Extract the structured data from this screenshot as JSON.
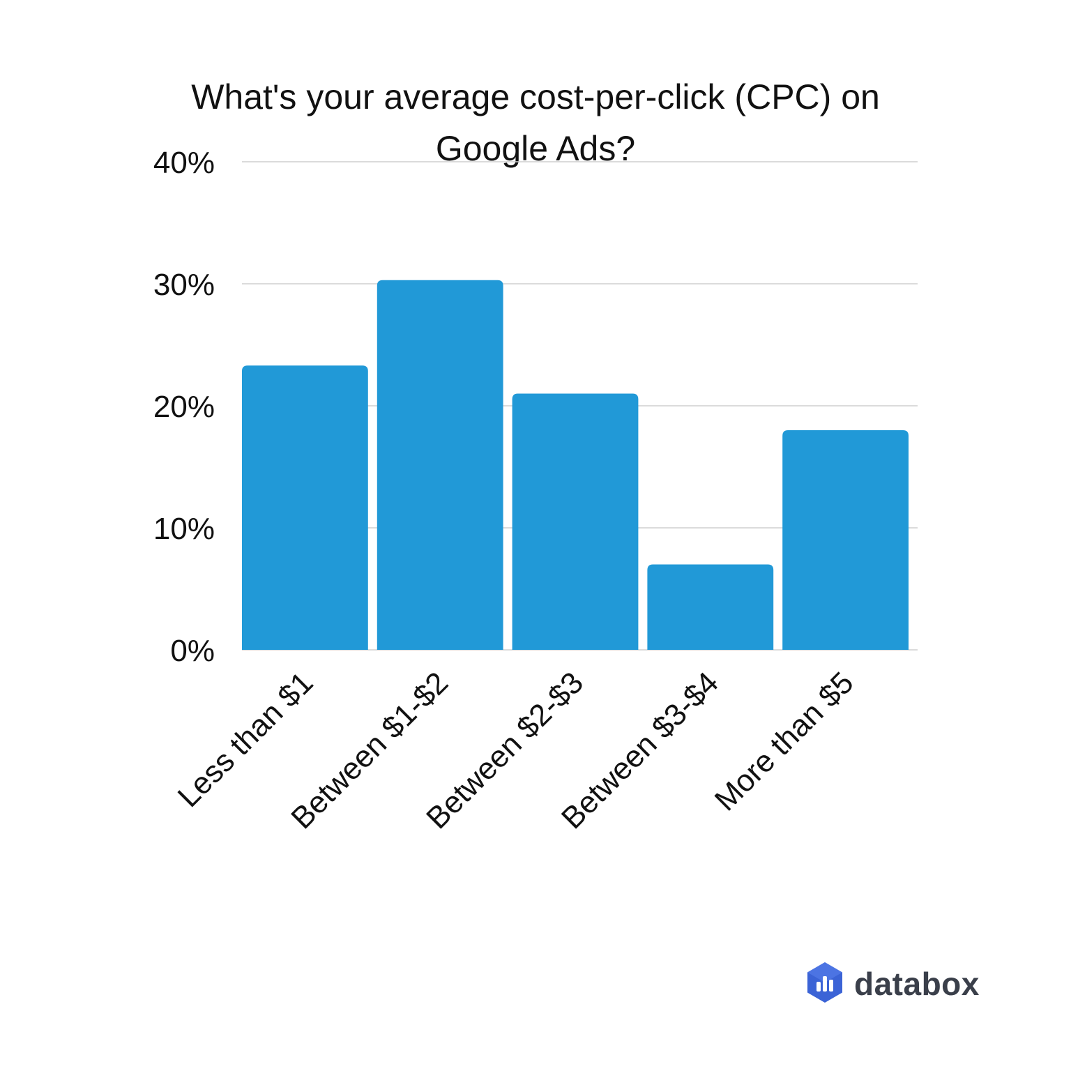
{
  "chart_data": {
    "type": "bar",
    "title_lines": [
      "What's your average cost-per-click (CPC) on",
      "Google Ads?"
    ],
    "categories": [
      "Less than $1",
      "Between $1-$2",
      "Between $2-$3",
      "Between $3-$4",
      "More than $5"
    ],
    "values": [
      23.3,
      30.3,
      21.0,
      7.0,
      18.0
    ],
    "ylim": [
      0,
      40
    ],
    "yticks": [
      "0%",
      "10%",
      "20%",
      "30%",
      "40%"
    ],
    "grid": true,
    "bar_color": "#2199d7"
  },
  "brand": {
    "name": "databox",
    "logo_icon": "databox-logo-icon",
    "logo_color": "#3b63d6"
  }
}
